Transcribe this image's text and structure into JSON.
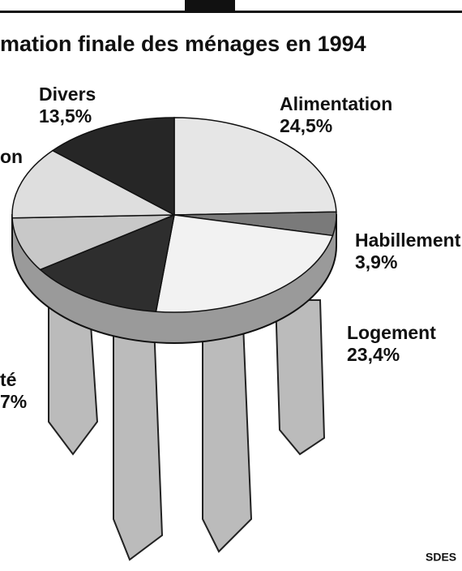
{
  "chart_data": {
    "type": "pie",
    "title": "mation finale des ménages en 1994",
    "categories": [
      "Alimentation",
      "Habillement",
      "Logement",
      null,
      null,
      null,
      "Divers"
    ],
    "values": [
      24.5,
      3.9,
      23.4,
      13.7,
      9,
      12,
      13.5
    ],
    "value_labels": [
      "24,5%",
      "3,9%",
      "23,4%",
      null,
      null,
      null,
      "13,5%"
    ],
    "colors": [
      "#e6e6e6",
      "#7a7a7a",
      "#f2f2f2",
      "#2e2e2e",
      "#c8c8c8",
      "#dedede",
      "#262626"
    ],
    "annotations": [
      "on",
      "té",
      "7%"
    ],
    "source": "SDES"
  }
}
